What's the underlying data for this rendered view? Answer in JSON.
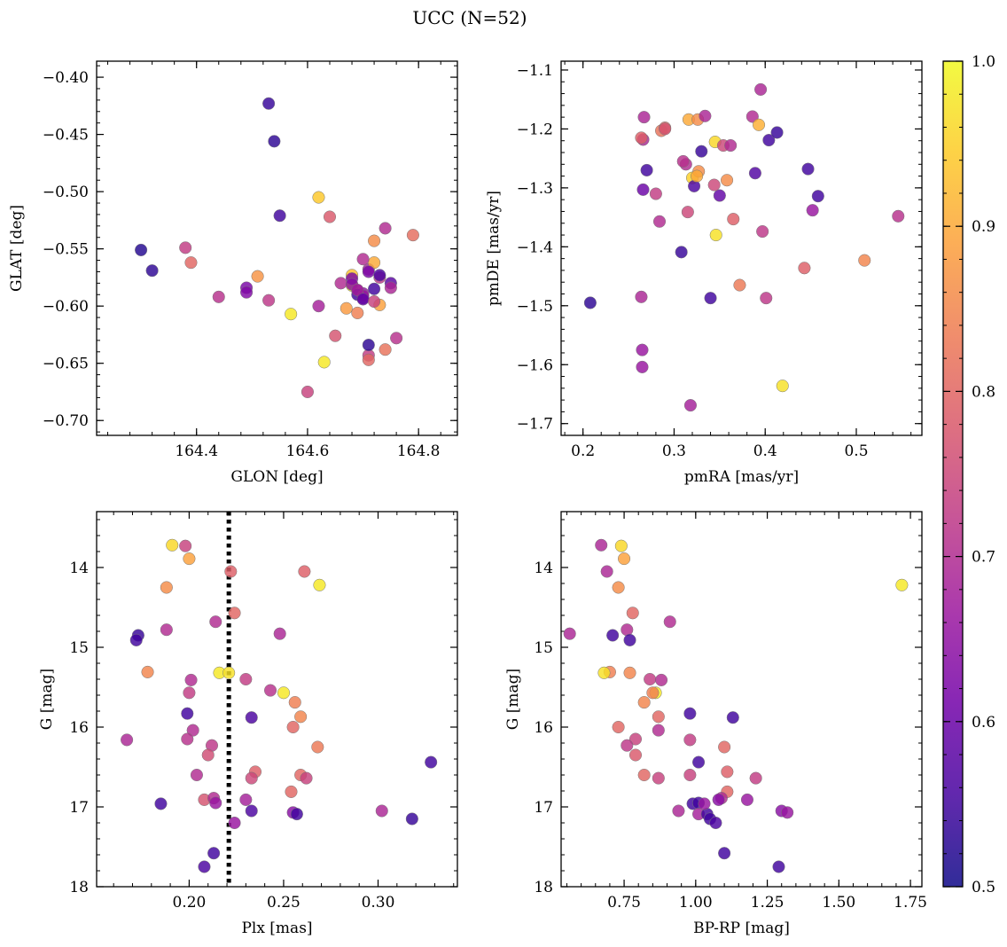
{
  "figure": {
    "suptitle": "UCC (N=52)",
    "colorbar": {
      "min": 0.5,
      "max": 1.0,
      "ticks": [
        0.5,
        0.6,
        0.7,
        0.8,
        0.9,
        1.0
      ],
      "tick_labels": [
        "0.5",
        "0.6",
        "0.7",
        "0.8",
        "0.9",
        "1.0"
      ],
      "colormap": "plasma"
    },
    "colormap_stops": [
      "#0d0887",
      "#46039f",
      "#7201a8",
      "#9c179e",
      "#bd3786",
      "#d8576b",
      "#ed7953",
      "#fb9f3a",
      "#fdca26",
      "#f0f921"
    ]
  },
  "chart_data": [
    {
      "type": "scatter",
      "id": "glon_glat",
      "xlabel": "GLON [deg]",
      "ylabel": "GLAT [deg]",
      "xlim": [
        164.22,
        164.87
      ],
      "ylim": [
        -0.713,
        -0.386
      ],
      "invert_y": false,
      "xticks": [
        164.4,
        164.6,
        164.8
      ],
      "xtick_labels": [
        "164.4",
        "164.6",
        "164.8"
      ],
      "yticks": [
        -0.7,
        -0.65,
        -0.6,
        -0.55,
        -0.5,
        -0.45,
        -0.4
      ],
      "ytick_labels": [
        "−0.70",
        "−0.65",
        "−0.60",
        "−0.55",
        "−0.50",
        "−0.45",
        "−0.40"
      ],
      "x": [
        164.53,
        164.54,
        164.55,
        164.3,
        164.32,
        164.38,
        164.39,
        164.44,
        164.49,
        164.49,
        164.51,
        164.53,
        164.57,
        164.6,
        164.62,
        164.62,
        164.63,
        164.64,
        164.65,
        164.66,
        164.67,
        164.68,
        164.68,
        164.69,
        164.69,
        164.7,
        164.7,
        164.71,
        164.71,
        164.71,
        164.72,
        164.72,
        164.72,
        164.73,
        164.73,
        164.74,
        164.74,
        164.75,
        164.75,
        164.76,
        164.79,
        164.68,
        164.68,
        164.69,
        164.7,
        164.7,
        164.71,
        164.69,
        164.7,
        164.72,
        164.73,
        164.71
      ],
      "y": [
        -0.423,
        -0.456,
        -0.521,
        -0.551,
        -0.569,
        -0.549,
        -0.562,
        -0.592,
        -0.584,
        -0.588,
        -0.574,
        -0.595,
        -0.607,
        -0.675,
        -0.6,
        -0.505,
        -0.649,
        -0.522,
        -0.626,
        -0.58,
        -0.602,
        -0.573,
        -0.582,
        -0.606,
        -0.586,
        -0.593,
        -0.589,
        -0.568,
        -0.643,
        -0.647,
        -0.562,
        -0.585,
        -0.543,
        -0.599,
        -0.575,
        -0.638,
        -0.532,
        -0.58,
        -0.584,
        -0.628,
        -0.538,
        -0.576,
        -0.581,
        -0.59,
        -0.591,
        -0.559,
        -0.57,
        -0.586,
        -0.594,
        -0.596,
        -0.573,
        -0.634
      ],
      "c": [
        0.54,
        0.53,
        0.55,
        0.52,
        0.53,
        0.73,
        0.8,
        0.71,
        0.62,
        0.63,
        0.87,
        0.72,
        0.98,
        0.74,
        0.68,
        0.94,
        0.98,
        0.78,
        0.77,
        0.7,
        0.88,
        0.93,
        0.98,
        0.84,
        0.66,
        0.6,
        0.65,
        0.68,
        0.73,
        0.8,
        0.9,
        0.55,
        0.86,
        0.89,
        0.72,
        0.82,
        0.7,
        0.58,
        0.69,
        0.71,
        0.81,
        0.62,
        0.64,
        0.55,
        0.66,
        0.7,
        0.62,
        0.68,
        0.59,
        0.74,
        0.56,
        0.53
      ]
    },
    {
      "type": "scatter",
      "id": "pmra_pmde",
      "xlabel": "pmRA [mas/yr]",
      "ylabel": "pmDE [mas/yr]",
      "xlim": [
        0.176,
        0.572
      ],
      "ylim": [
        -1.72,
        -1.085
      ],
      "invert_y": false,
      "xticks": [
        0.2,
        0.3,
        0.4,
        0.5
      ],
      "xtick_labels": [
        "0.2",
        "0.3",
        "0.4",
        "0.5"
      ],
      "yticks": [
        -1.7,
        -1.6,
        -1.5,
        -1.4,
        -1.3,
        -1.2,
        -1.1
      ],
      "ytick_labels": [
        "−1.7",
        "−1.6",
        "−1.5",
        "−1.4",
        "−1.3",
        "−1.2",
        "−1.1"
      ],
      "x": [
        0.208,
        0.264,
        0.265,
        0.265,
        0.266,
        0.266,
        0.267,
        0.27,
        0.28,
        0.284,
        0.286,
        0.29,
        0.308,
        0.313,
        0.315,
        0.316,
        0.318,
        0.32,
        0.322,
        0.326,
        0.327,
        0.33,
        0.334,
        0.34,
        0.345,
        0.346,
        0.35,
        0.354,
        0.358,
        0.362,
        0.365,
        0.372,
        0.386,
        0.389,
        0.393,
        0.395,
        0.397,
        0.401,
        0.404,
        0.413,
        0.419,
        0.443,
        0.447,
        0.452,
        0.458,
        0.509,
        0.546,
        0.31,
        0.325,
        0.29,
        0.344,
        0.264
      ],
      "y": [
        -1.495,
        -1.485,
        -1.575,
        -1.604,
        -1.303,
        -1.218,
        -1.18,
        -1.27,
        -1.31,
        -1.357,
        -1.203,
        -1.198,
        -1.409,
        -1.26,
        -1.341,
        -1.184,
        -1.669,
        -1.283,
        -1.297,
        -1.184,
        -1.272,
        -1.238,
        -1.178,
        -1.487,
        -1.222,
        -1.38,
        -1.313,
        -1.228,
        -1.287,
        -1.228,
        -1.353,
        -1.465,
        -1.179,
        -1.275,
        -1.193,
        -1.133,
        -1.374,
        -1.487,
        -1.219,
        -1.206,
        -1.636,
        -1.436,
        -1.268,
        -1.338,
        -1.314,
        -1.423,
        -1.348,
        -1.255,
        -1.28,
        -1.2,
        -1.295,
        -1.215
      ],
      "c": [
        0.53,
        0.69,
        0.66,
        0.66,
        0.6,
        0.69,
        0.69,
        0.55,
        0.73,
        0.7,
        0.82,
        0.8,
        0.54,
        0.7,
        0.75,
        0.9,
        0.68,
        0.95,
        0.56,
        0.86,
        0.86,
        0.54,
        0.69,
        0.55,
        0.96,
        0.97,
        0.59,
        0.75,
        0.86,
        0.7,
        0.79,
        0.83,
        0.7,
        0.57,
        0.91,
        0.69,
        0.72,
        0.72,
        0.55,
        0.54,
        0.97,
        0.79,
        0.55,
        0.66,
        0.55,
        0.85,
        0.71,
        0.71,
        0.9,
        0.77,
        0.75,
        0.79
      ]
    },
    {
      "type": "scatter",
      "id": "plx_g",
      "xlabel": "Plx [mas]",
      "ylabel": "G [mag]",
      "xlim": [
        0.151,
        0.342
      ],
      "ylim": [
        18.0,
        13.3
      ],
      "invert_y": true,
      "vline": 0.221,
      "xticks": [
        0.2,
        0.25,
        0.3
      ],
      "xtick_labels": [
        "0.20",
        "0.25",
        "0.30"
      ],
      "yticks": [
        14,
        15,
        16,
        17,
        18
      ],
      "ytick_labels": [
        "14",
        "15",
        "16",
        "17",
        "18"
      ],
      "x": [
        0.191,
        0.198,
        0.2,
        0.188,
        0.222,
        0.224,
        0.269,
        0.214,
        0.188,
        0.173,
        0.172,
        0.178,
        0.248,
        0.216,
        0.221,
        0.23,
        0.201,
        0.243,
        0.25,
        0.2,
        0.256,
        0.199,
        0.233,
        0.259,
        0.255,
        0.202,
        0.212,
        0.199,
        0.268,
        0.21,
        0.235,
        0.204,
        0.259,
        0.262,
        0.233,
        0.328,
        0.254,
        0.208,
        0.213,
        0.185,
        0.23,
        0.214,
        0.233,
        0.255,
        0.257,
        0.302,
        0.318,
        0.224,
        0.213,
        0.208,
        0.167,
        0.261
      ],
      "y": [
        13.72,
        13.73,
        13.89,
        14.25,
        14.05,
        14.57,
        14.22,
        14.68,
        14.78,
        14.85,
        14.91,
        15.31,
        14.83,
        15.32,
        15.32,
        15.4,
        15.41,
        15.54,
        15.57,
        15.57,
        15.69,
        15.83,
        15.88,
        15.87,
        16.0,
        16.04,
        16.23,
        16.15,
        16.25,
        16.35,
        16.56,
        16.6,
        16.6,
        16.64,
        16.64,
        16.44,
        16.81,
        16.91,
        16.89,
        16.96,
        16.91,
        16.95,
        17.05,
        17.07,
        17.09,
        17.05,
        17.15,
        17.2,
        17.58,
        17.75,
        16.16,
        14.05
      ],
      "c": [
        0.96,
        0.74,
        0.89,
        0.86,
        0.79,
        0.8,
        0.98,
        0.7,
        0.7,
        0.54,
        0.55,
        0.85,
        0.69,
        0.98,
        0.97,
        0.73,
        0.7,
        0.71,
        0.98,
        0.73,
        0.84,
        0.55,
        0.56,
        0.85,
        0.8,
        0.7,
        0.72,
        0.71,
        0.83,
        0.76,
        0.79,
        0.7,
        0.8,
        0.74,
        0.75,
        0.55,
        0.8,
        0.77,
        0.7,
        0.55,
        0.68,
        0.66,
        0.56,
        0.64,
        0.55,
        0.69,
        0.54,
        0.66,
        0.55,
        0.56,
        0.69,
        0.79
      ]
    },
    {
      "type": "scatter",
      "id": "bprp_g",
      "xlabel": "BP-RP [mag]",
      "ylabel": "G [mag]",
      "xlim": [
        0.53,
        1.79
      ],
      "ylim": [
        18.0,
        13.3
      ],
      "invert_y": true,
      "xticks": [
        0.75,
        1.0,
        1.25,
        1.5,
        1.75
      ],
      "xtick_labels": [
        "0.75",
        "1.00",
        "1.25",
        "1.50",
        "1.75"
      ],
      "yticks": [
        14,
        15,
        16,
        17,
        18
      ],
      "ytick_labels": [
        "14",
        "15",
        "16",
        "17",
        "18"
      ],
      "x": [
        0.67,
        0.74,
        0.75,
        0.69,
        0.73,
        1.72,
        0.78,
        0.91,
        0.76,
        0.56,
        0.71,
        0.77,
        0.7,
        0.68,
        0.77,
        0.84,
        0.88,
        0.86,
        0.85,
        0.82,
        0.98,
        0.87,
        1.13,
        0.73,
        0.87,
        0.79,
        0.98,
        0.76,
        1.1,
        0.79,
        1.01,
        1.11,
        0.98,
        0.82,
        0.87,
        1.21,
        1.11,
        0.99,
        1.01,
        1.09,
        1.18,
        1.08,
        0.94,
        1.01,
        1.04,
        1.3,
        1.32,
        1.05,
        1.07,
        1.1,
        1.29,
        1.03
      ],
      "y": [
        13.72,
        13.73,
        13.89,
        14.05,
        14.25,
        14.22,
        14.57,
        14.68,
        14.78,
        14.83,
        14.85,
        14.91,
        15.31,
        15.32,
        15.32,
        15.4,
        15.41,
        15.57,
        15.57,
        15.69,
        15.83,
        15.87,
        15.88,
        16.0,
        16.04,
        16.15,
        16.16,
        16.23,
        16.25,
        16.35,
        16.44,
        16.56,
        16.6,
        16.6,
        16.64,
        16.64,
        16.81,
        16.96,
        16.95,
        16.89,
        16.91,
        16.91,
        17.05,
        17.09,
        17.09,
        17.05,
        17.07,
        17.15,
        17.2,
        17.58,
        17.75,
        16.96
      ],
      "c": [
        0.69,
        0.96,
        0.89,
        0.69,
        0.86,
        0.98,
        0.8,
        0.7,
        0.7,
        0.69,
        0.55,
        0.55,
        0.84,
        0.97,
        0.85,
        0.73,
        0.7,
        0.98,
        0.84,
        0.85,
        0.55,
        0.8,
        0.55,
        0.8,
        0.7,
        0.74,
        0.73,
        0.72,
        0.8,
        0.78,
        0.55,
        0.79,
        0.74,
        0.8,
        0.74,
        0.73,
        0.8,
        0.55,
        0.55,
        0.7,
        0.66,
        0.64,
        0.69,
        0.68,
        0.55,
        0.64,
        0.66,
        0.55,
        0.56,
        0.55,
        0.55,
        0.66
      ]
    }
  ]
}
